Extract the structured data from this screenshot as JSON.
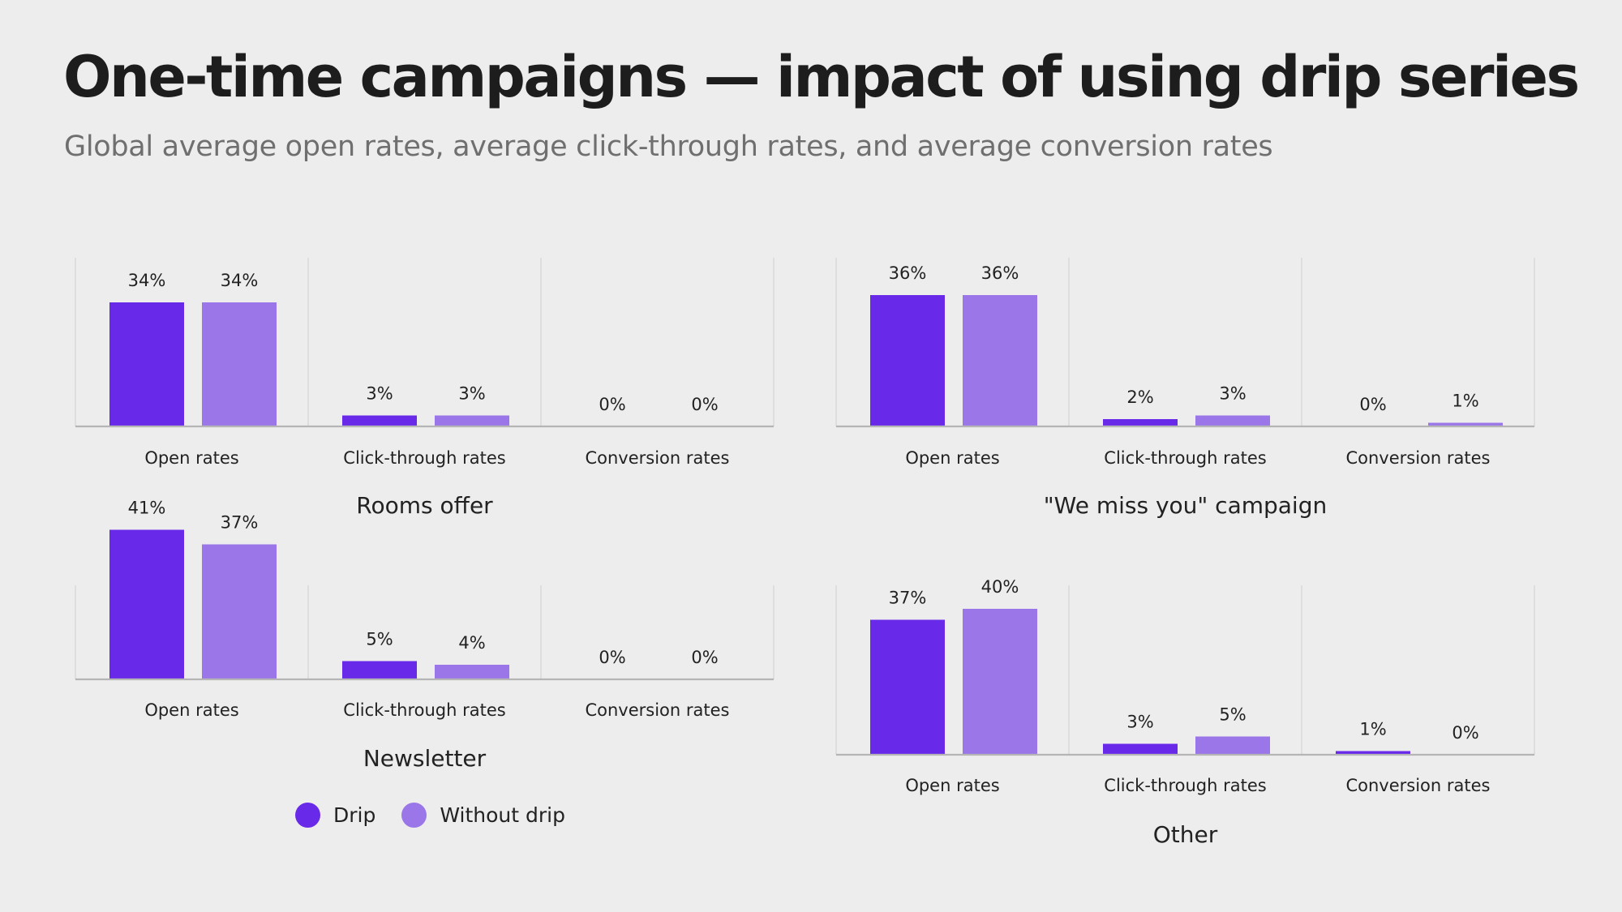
{
  "title": "One-time campaigns — impact of using drip series",
  "subtitle": "Global average open rates, average click-through rates, and average conversion rates",
  "colors": {
    "drip": "#6929e9",
    "without_drip": "#9b76e8",
    "grid": "#d6d6d6",
    "axis": "#b5b5b5",
    "text": "#222222"
  },
  "legend": {
    "drip": "Drip",
    "without_drip": "Without drip"
  },
  "chart_data": [
    {
      "type": "bar",
      "title": "Rooms offer",
      "categories": [
        "Open rates",
        "Click-through rates",
        "Conversion rates"
      ],
      "series": [
        {
          "name": "Drip",
          "values": [
            34,
            3,
            0
          ],
          "labels": [
            "34%",
            "3%",
            "0%"
          ]
        },
        {
          "name": "Without drip",
          "values": [
            34,
            3,
            0
          ],
          "labels": [
            "34%",
            "3%",
            "0%"
          ]
        }
      ],
      "ylim": [
        0,
        45
      ]
    },
    {
      "type": "bar",
      "title": "\"We miss you\" campaign",
      "categories": [
        "Open rates",
        "Click-through rates",
        "Conversion rates"
      ],
      "series": [
        {
          "name": "Drip",
          "values": [
            36,
            2,
            0
          ],
          "labels": [
            "36%",
            "2%",
            "0%"
          ]
        },
        {
          "name": "Without drip",
          "values": [
            36,
            3,
            1
          ],
          "labels": [
            "36%",
            "3%",
            "1%"
          ]
        }
      ],
      "ylim": [
        0,
        45
      ]
    },
    {
      "type": "bar",
      "title": "Newsletter",
      "categories": [
        "Open rates",
        "Click-through rates",
        "Conversion rates"
      ],
      "series": [
        {
          "name": "Drip",
          "values": [
            41,
            5,
            0
          ],
          "labels": [
            "41%",
            "5%",
            "0%"
          ]
        },
        {
          "name": "Without drip",
          "values": [
            37,
            4,
            0
          ],
          "labels": [
            "37%",
            "4%",
            "0%"
          ]
        }
      ],
      "ylim": [
        0,
        45
      ]
    },
    {
      "type": "bar",
      "title": "Other",
      "categories": [
        "Open rates",
        "Click-through rates",
        "Conversion rates"
      ],
      "series": [
        {
          "name": "Drip",
          "values": [
            37,
            3,
            1
          ],
          "labels": [
            "37%",
            "3%",
            "1%"
          ]
        },
        {
          "name": "Without drip",
          "values": [
            40,
            5,
            0
          ],
          "labels": [
            "40%",
            "5%",
            "0%"
          ]
        }
      ],
      "ylim": [
        0,
        45
      ]
    }
  ]
}
